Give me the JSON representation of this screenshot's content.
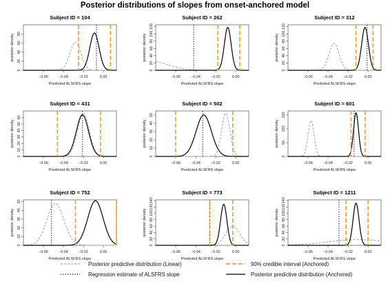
{
  "chart_data": {
    "type": "line",
    "title": "Posterior distributions of slopes from onset-anchored model",
    "xlabel": "Predicted ALSFRS slope",
    "ylabel": "posterior density",
    "xlim": [
      -0.08,
      0.013
    ],
    "xticks": [
      -0.06,
      -0.04,
      -0.02,
      0.0
    ],
    "xtick_labels": [
      "−0.06",
      "−0.04",
      "−0.02",
      "0.00"
    ],
    "legend": [
      {
        "key": "linear",
        "label": "Posterior predictive distribution (Linear)",
        "color": "#a8a8a8",
        "style": "dashed"
      },
      {
        "key": "regression",
        "label": "Regression estimate of ALSFRS slope",
        "color": "#1a237e",
        "style": "dotted"
      },
      {
        "key": "ci",
        "label": "90% credible interval (Anchored)",
        "color": "#f0a020",
        "style": "long-dashed"
      },
      {
        "key": "anchored",
        "label": "Posterior predictive distribution (Anchored)",
        "color": "#000000",
        "style": "solid"
      }
    ],
    "panels": [
      {
        "title": "Subject ID = 104",
        "ymax": 100,
        "yticks": [
          0,
          20,
          40,
          60,
          80
        ],
        "linear": {
          "mean": -0.028,
          "sd": 0.0055,
          "peak": 62
        },
        "anchored": {
          "mean": -0.009,
          "sd": 0.0046,
          "peak": 82
        },
        "regression": -0.007,
        "ci": [
          -0.025,
          0.007
        ]
      },
      {
        "title": "Subject ID = 262",
        "ymax": 125,
        "yticks": [
          0,
          20,
          40,
          60,
          80,
          100,
          120
        ],
        "linear": {
          "mean": -0.09,
          "sd": 0.02,
          "peak": 28
        },
        "anchored": {
          "mean": -0.008,
          "sd": 0.0034,
          "peak": 118
        },
        "regression": -0.042,
        "ci": [
          -0.018,
          0.004
        ]
      },
      {
        "title": "Subject ID = 312",
        "ymax": 125,
        "yticks": [
          0,
          20,
          40,
          60,
          80,
          100,
          120
        ],
        "linear": {
          "mean": -0.034,
          "sd": 0.005,
          "peak": 74
        },
        "anchored": {
          "mean": -0.003,
          "sd": 0.0034,
          "peak": 118
        },
        "regression": -0.001,
        "ci": [
          -0.012,
          0.005
        ]
      },
      {
        "title": "Subject ID = 431",
        "ymax": 70,
        "yticks": [
          0,
          10,
          20,
          30,
          40,
          50,
          60
        ],
        "linear": {
          "mean": -0.02,
          "sd": 0.0059,
          "peak": 66
        },
        "anchored": {
          "mean": -0.021,
          "sd": 0.0061,
          "peak": 64
        },
        "regression": -0.021,
        "ci": [
          -0.046,
          -0.003
        ]
      },
      {
        "title": "Subject ID = 502",
        "ymax": 55,
        "yticks": [
          0,
          10,
          20,
          30,
          40,
          50
        ],
        "linear": {
          "mean": -0.01,
          "sd": 0.0042,
          "peak": 52
        },
        "anchored": {
          "mean": -0.032,
          "sd": 0.0077,
          "peak": 50
        },
        "regression": -0.033,
        "ci": [
          -0.06,
          -0.003
        ]
      },
      {
        "title": "Subject ID = 601",
        "ymax": 165,
        "yticks": [
          0,
          50,
          100,
          150
        ],
        "linear": {
          "mean": -0.057,
          "sd": 0.003,
          "peak": 130
        },
        "anchored": {
          "mean": -0.012,
          "sd": 0.0025,
          "peak": 158
        },
        "regression": -0.014,
        "ci": [
          -0.017,
          -0.003
        ]
      },
      {
        "title": "Subject ID = 752",
        "ymax": 52,
        "yticks": [
          0,
          10,
          20,
          30,
          40,
          50
        ],
        "linear": {
          "mean": -0.048,
          "sd": 0.0085,
          "peak": 48
        },
        "anchored": {
          "mean": -0.008,
          "sd": 0.0077,
          "peak": 51
        },
        "regression": -0.052,
        "ci": [
          -0.028,
          0.013
        ]
      },
      {
        "title": "Subject ID = 773",
        "ymax": 142,
        "yticks": [
          0,
          20,
          40,
          60,
          80,
          100,
          120,
          140
        ],
        "linear": {
          "mean": -0.003,
          "sd": 0.007,
          "peak": 60
        },
        "anchored": {
          "mean": -0.012,
          "sd": 0.0032,
          "peak": 128
        },
        "regression": -0.026,
        "ci": [
          -0.026,
          -0.003
        ]
      },
      {
        "title": "Subject ID = 1211",
        "ymax": 142,
        "yticks": [
          0,
          20,
          40,
          60,
          80,
          100,
          120,
          140
        ],
        "linear": {
          "mean": -0.01,
          "sd": 0.03,
          "peak": 18
        },
        "anchored": {
          "mean": -0.012,
          "sd": 0.003,
          "peak": 132
        },
        "regression": -0.029,
        "ci": [
          -0.022,
          0.0
        ]
      }
    ]
  }
}
